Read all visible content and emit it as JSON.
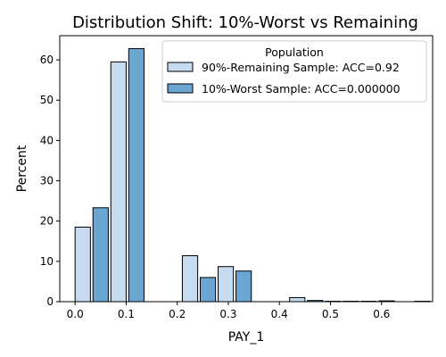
{
  "chart_data": {
    "type": "bar",
    "title": "Distribution Shift: 10%-Worst vs Remaining",
    "xlabel": "PAY_1",
    "ylabel": "Percent",
    "xlim": [
      -0.03,
      0.7
    ],
    "ylim": [
      0,
      66
    ],
    "xticks": [
      "0.0",
      "0.1",
      "0.2",
      "0.3",
      "0.4",
      "0.5",
      "0.6"
    ],
    "yticks": [
      "0",
      "10",
      "20",
      "30",
      "40",
      "50",
      "60"
    ],
    "bin_width": 0.05,
    "legend": {
      "title": "Population",
      "position": "top-right"
    },
    "series": [
      {
        "name": "90%-Remaining Sample: ACC=0.92",
        "color": "#c6dbef",
        "bins": [
          {
            "x0": 0.0,
            "value": 18.5
          },
          {
            "x0": 0.07,
            "value": 59.5
          },
          {
            "x0": 0.21,
            "value": 11.4
          },
          {
            "x0": 0.28,
            "value": 8.7
          },
          {
            "x0": 0.42,
            "value": 1.0
          },
          {
            "x0": 0.49,
            "value": 0.1
          },
          {
            "x0": 0.56,
            "value": 0.1
          }
        ]
      },
      {
        "name": "10%-Worst Sample: ACC=0.000000",
        "color": "#6aa6d1",
        "bins": [
          {
            "x0": 0.035,
            "value": 23.3
          },
          {
            "x0": 0.105,
            "value": 62.8
          },
          {
            "x0": 0.245,
            "value": 6.0
          },
          {
            "x0": 0.315,
            "value": 7.6
          },
          {
            "x0": 0.455,
            "value": 0.3
          },
          {
            "x0": 0.525,
            "value": 0.1
          },
          {
            "x0": 0.595,
            "value": 0.2
          },
          {
            "x0": 0.665,
            "value": 0.1
          }
        ]
      }
    ],
    "grid": false
  }
}
